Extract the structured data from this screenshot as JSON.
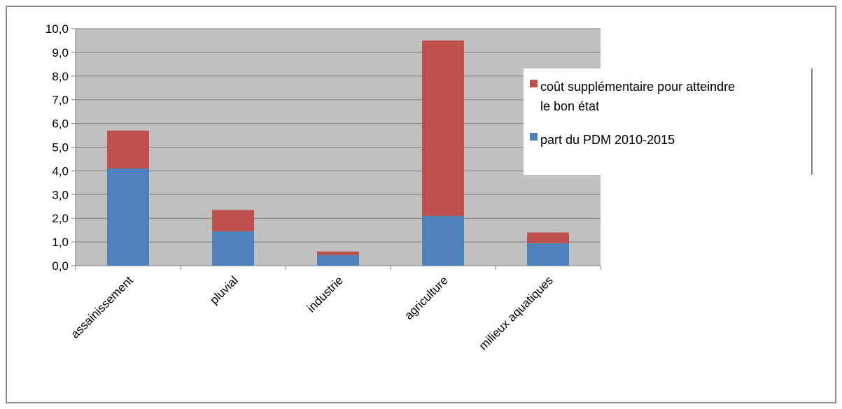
{
  "chart_data": {
    "type": "bar",
    "stacked": true,
    "title": "",
    "xlabel": "",
    "ylabel": "",
    "categories": [
      "assainissement",
      "pluvial",
      "industrie",
      "agriculture",
      "milieux aquatiques"
    ],
    "series": [
      {
        "name": "part du PDM 2010-2015",
        "color": "#4f81bd",
        "values": [
          4.1,
          1.45,
          0.45,
          2.1,
          0.95
        ]
      },
      {
        "name": "coût supplémentaire pour atteindre le bon état",
        "color": "#c0504d",
        "values": [
          1.6,
          0.9,
          0.15,
          7.4,
          0.45
        ]
      }
    ],
    "ylim": [
      0,
      10
    ],
    "ytick_step": 1,
    "ytick_labels": [
      "0,0",
      "1,0",
      "2,0",
      "3,0",
      "4,0",
      "5,0",
      "6,0",
      "7,0",
      "8,0",
      "9,0",
      "10,0"
    ],
    "grid": true,
    "plot_background": "#c0c0c0",
    "legend": {
      "placement": "right",
      "entries": [
        {
          "lines": [
            "coût supplémentaire pour atteindre",
            "le bon état"
          ],
          "color": "#c0504d"
        },
        {
          "lines": [
            "part du PDM 2010-2015"
          ],
          "color": "#4f81bd"
        }
      ]
    }
  }
}
